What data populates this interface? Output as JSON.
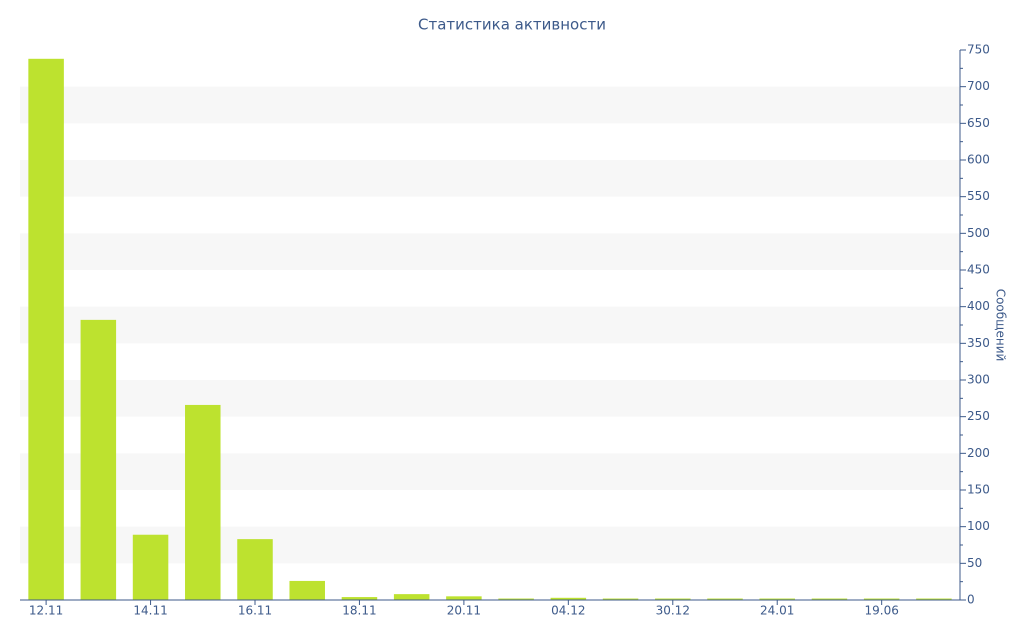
{
  "chart_data": {
    "type": "bar",
    "title": "Статистика активности",
    "y_label": "Сообщений",
    "categories": [
      "12.11",
      null,
      "14.11",
      null,
      "16.11",
      null,
      "18.11",
      null,
      "20.11",
      null,
      "04.12",
      null,
      "30.12",
      null,
      "24.01",
      null,
      "19.06",
      null
    ],
    "values": [
      738,
      382,
      89,
      266,
      83,
      26,
      4,
      8,
      5,
      2,
      3,
      2,
      2,
      2,
      2,
      2,
      2,
      2
    ],
    "color": "#bde22f",
    "ylim": [
      0,
      750
    ],
    "yticks": [
      0,
      50,
      100,
      150,
      200,
      250,
      300,
      350,
      400,
      450,
      500,
      550,
      600,
      650,
      700,
      750
    ],
    "grid": true,
    "y_axis_side": "right"
  }
}
